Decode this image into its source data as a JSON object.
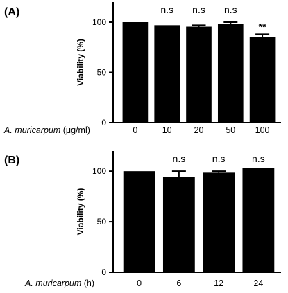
{
  "chart_data": [
    {
      "type": "bar",
      "panel_label": "(A)",
      "categories": [
        "0",
        "10",
        "20",
        "50",
        "100"
      ],
      "values": [
        100,
        97,
        95.5,
        98.5,
        85
      ],
      "errors": [
        0,
        0,
        1.5,
        1.5,
        3
      ],
      "annotations": [
        "",
        "n.s",
        "n.s",
        "n.s",
        "**"
      ],
      "ylabel": "Viability (%)",
      "xlabel": {
        "italic": "A. muricarpum",
        "rest": " (μg/ml)"
      },
      "ylim": [
        0,
        120
      ],
      "yticks": [
        0,
        50,
        100
      ],
      "bar_color": "#000000",
      "grid": false,
      "legend": "none"
    },
    {
      "type": "bar",
      "panel_label": "(B)",
      "categories": [
        "0",
        "6",
        "12",
        "24"
      ],
      "values": [
        100,
        94,
        98.5,
        103
      ],
      "errors": [
        0,
        6,
        1.5,
        0
      ],
      "annotations": [
        "",
        "n.s",
        "n.s",
        "n.s"
      ],
      "ylabel": "Viability (%)",
      "xlabel": {
        "italic": "A. muricarpum",
        "rest": " (h)"
      },
      "ylim": [
        0,
        120
      ],
      "yticks": [
        0,
        50,
        100
      ],
      "bar_color": "#000000",
      "grid": false,
      "legend": "none"
    }
  ]
}
